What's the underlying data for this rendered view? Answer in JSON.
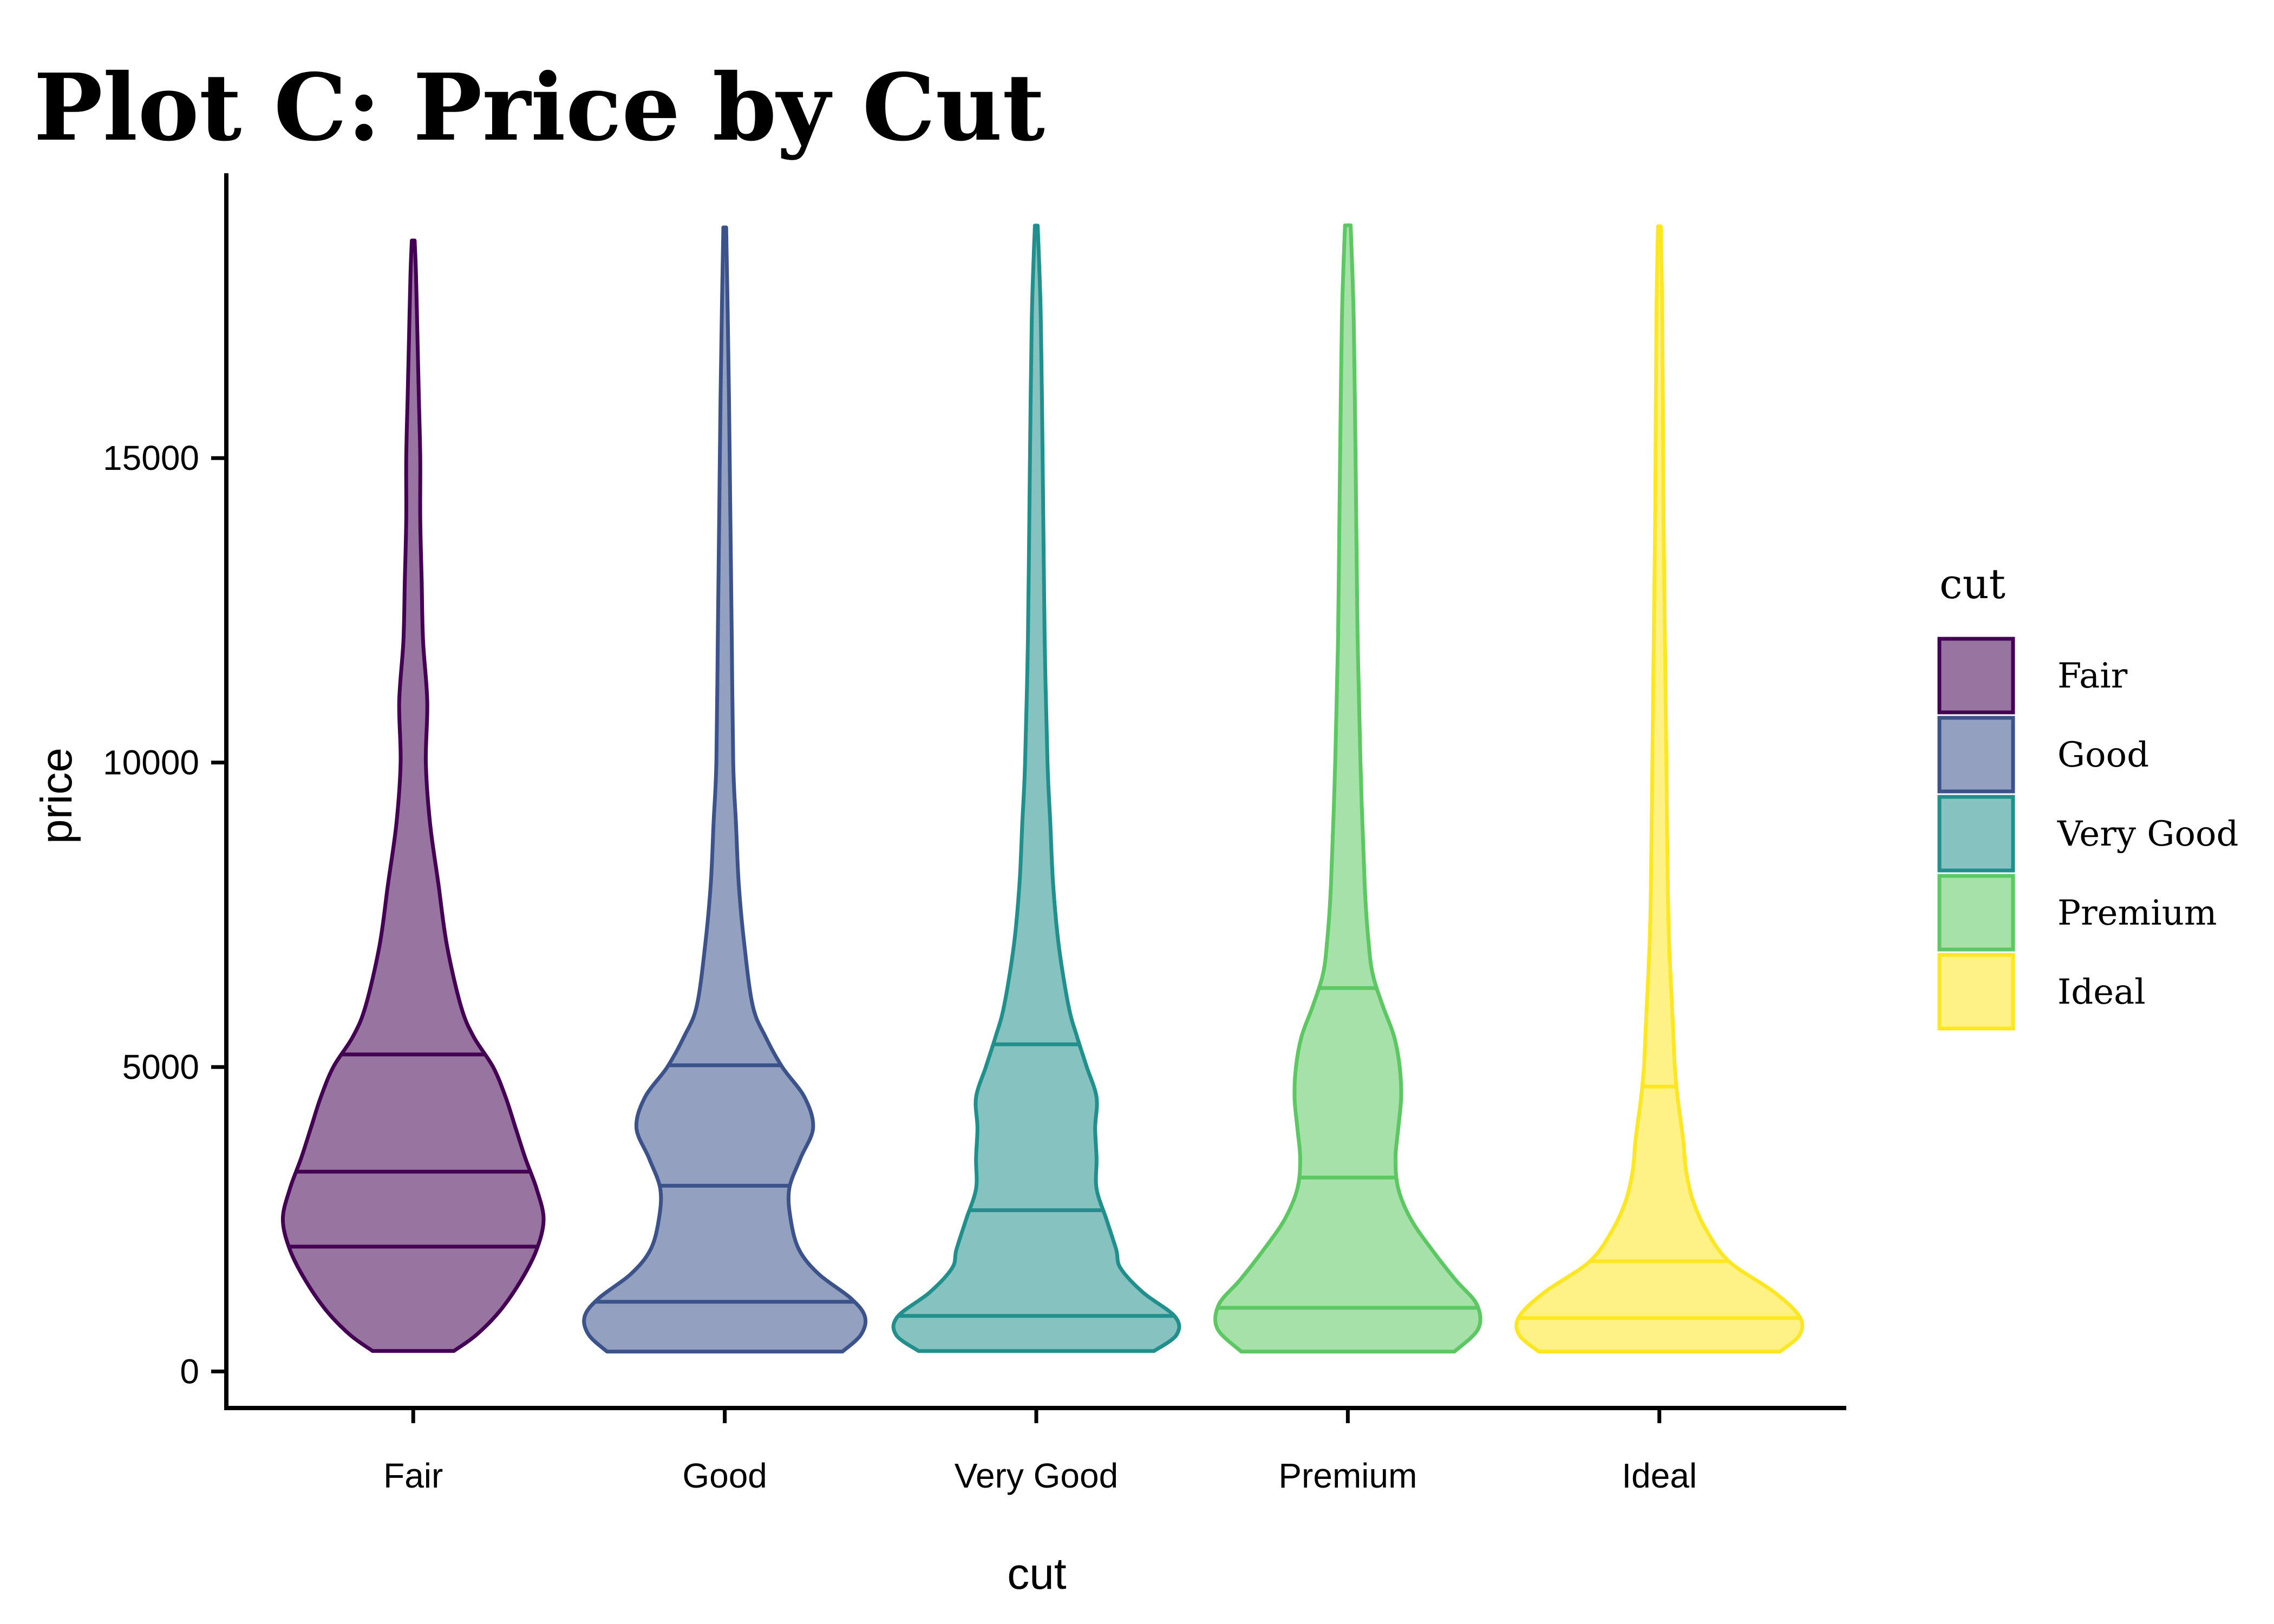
{
  "chart_data": {
    "type": "violin",
    "title": "Plot C: Price by Cut",
    "xlabel": "cut",
    "ylabel": "price",
    "categories": [
      "Fair",
      "Good",
      "Very Good",
      "Premium",
      "Ideal"
    ],
    "yticks": [
      0,
      5000,
      10000,
      15000
    ],
    "ytick_labels": [
      "0",
      "5000",
      "10000",
      "15000"
    ],
    "ylim": [
      -600,
      19500
    ],
    "grid": false,
    "legend": {
      "title": "cut",
      "placement": "right"
    },
    "colors": [
      "#440154",
      "#3b528b",
      "#21908c",
      "#5dc863",
      "#fde725"
    ],
    "fill_opacity": 0.55,
    "series": [
      {
        "name": "Fair",
        "min": 337,
        "max": 18574,
        "quantiles": {
          "q25": 2050,
          "q50": 3282,
          "q75": 5206
        },
        "density": [
          [
            337,
            0.29
          ],
          [
            600,
            0.45
          ],
          [
            1000,
            0.62
          ],
          [
            1500,
            0.77
          ],
          [
            2000,
            0.88
          ],
          [
            2500,
            0.93
          ],
          [
            3000,
            0.88
          ],
          [
            3500,
            0.8
          ],
          [
            4000,
            0.73
          ],
          [
            4500,
            0.66
          ],
          [
            5000,
            0.57
          ],
          [
            5500,
            0.43
          ],
          [
            6000,
            0.34
          ],
          [
            7000,
            0.24
          ],
          [
            8000,
            0.18
          ],
          [
            9000,
            0.12
          ],
          [
            10000,
            0.09
          ],
          [
            11000,
            0.1
          ],
          [
            12000,
            0.07
          ],
          [
            13000,
            0.06
          ],
          [
            14000,
            0.05
          ],
          [
            15000,
            0.05
          ],
          [
            16000,
            0.04
          ],
          [
            17000,
            0.03
          ],
          [
            18000,
            0.02
          ],
          [
            18574,
            0.01
          ]
        ]
      },
      {
        "name": "Good",
        "min": 327,
        "max": 18788,
        "quantiles": {
          "q25": 1145,
          "q50": 3050,
          "q75": 5028
        },
        "density": [
          [
            327,
            0.84
          ],
          [
            600,
            0.97
          ],
          [
            900,
            1.0
          ],
          [
            1200,
            0.9
          ],
          [
            1600,
            0.67
          ],
          [
            2000,
            0.53
          ],
          [
            2500,
            0.47
          ],
          [
            3000,
            0.46
          ],
          [
            3500,
            0.54
          ],
          [
            4000,
            0.63
          ],
          [
            4500,
            0.57
          ],
          [
            5000,
            0.41
          ],
          [
            5500,
            0.29
          ],
          [
            6000,
            0.2
          ],
          [
            7000,
            0.14
          ],
          [
            8000,
            0.1
          ],
          [
            9000,
            0.08
          ],
          [
            10000,
            0.06
          ],
          [
            12000,
            0.05
          ],
          [
            14000,
            0.04
          ],
          [
            16000,
            0.03
          ],
          [
            17500,
            0.02
          ],
          [
            18788,
            0.01
          ]
        ]
      },
      {
        "name": "Very Good",
        "min": 336,
        "max": 18818,
        "quantiles": {
          "q25": 912,
          "q50": 2648,
          "q75": 5373
        },
        "density": [
          [
            336,
            0.84
          ],
          [
            600,
            1.0
          ],
          [
            900,
            0.99
          ],
          [
            1300,
            0.76
          ],
          [
            1700,
            0.6
          ],
          [
            2000,
            0.57
          ],
          [
            2500,
            0.5
          ],
          [
            3000,
            0.43
          ],
          [
            3500,
            0.43
          ],
          [
            4000,
            0.42
          ],
          [
            4500,
            0.43
          ],
          [
            5000,
            0.36
          ],
          [
            5500,
            0.29
          ],
          [
            6000,
            0.23
          ],
          [
            7000,
            0.16
          ],
          [
            8000,
            0.12
          ],
          [
            9000,
            0.1
          ],
          [
            10000,
            0.08
          ],
          [
            12000,
            0.06
          ],
          [
            14000,
            0.05
          ],
          [
            16000,
            0.04
          ],
          [
            17500,
            0.03
          ],
          [
            18818,
            0.01
          ]
        ]
      },
      {
        "name": "Premium",
        "min": 326,
        "max": 18823,
        "quantiles": {
          "q25": 1046,
          "q50": 3185,
          "q75": 6296
        },
        "density": [
          [
            326,
            0.76
          ],
          [
            700,
            0.93
          ],
          [
            1100,
            0.92
          ],
          [
            1500,
            0.77
          ],
          [
            2000,
            0.6
          ],
          [
            2500,
            0.45
          ],
          [
            3000,
            0.36
          ],
          [
            3500,
            0.34
          ],
          [
            4000,
            0.36
          ],
          [
            4500,
            0.38
          ],
          [
            5000,
            0.37
          ],
          [
            5500,
            0.33
          ],
          [
            6000,
            0.25
          ],
          [
            6500,
            0.18
          ],
          [
            7000,
            0.15
          ],
          [
            8000,
            0.12
          ],
          [
            10000,
            0.09
          ],
          [
            12000,
            0.07
          ],
          [
            14000,
            0.06
          ],
          [
            16000,
            0.05
          ],
          [
            17500,
            0.04
          ],
          [
            18823,
            0.02
          ]
        ]
      },
      {
        "name": "Ideal",
        "min": 326,
        "max": 18806,
        "quantiles": {
          "q25": 878,
          "q50": 1810,
          "q75": 4678
        },
        "density": [
          [
            326,
            0.86
          ],
          [
            600,
            1.0
          ],
          [
            900,
            1.0
          ],
          [
            1300,
            0.82
          ],
          [
            1800,
            0.5
          ],
          [
            2300,
            0.34
          ],
          [
            2800,
            0.24
          ],
          [
            3300,
            0.19
          ],
          [
            3800,
            0.17
          ],
          [
            4500,
            0.13
          ],
          [
            5000,
            0.11
          ],
          [
            5500,
            0.1
          ],
          [
            6000,
            0.09
          ],
          [
            7000,
            0.07
          ],
          [
            8000,
            0.06
          ],
          [
            10000,
            0.05
          ],
          [
            12000,
            0.04
          ],
          [
            14000,
            0.03
          ],
          [
            16000,
            0.025
          ],
          [
            17500,
            0.02
          ],
          [
            18806,
            0.01
          ]
        ]
      }
    ]
  }
}
